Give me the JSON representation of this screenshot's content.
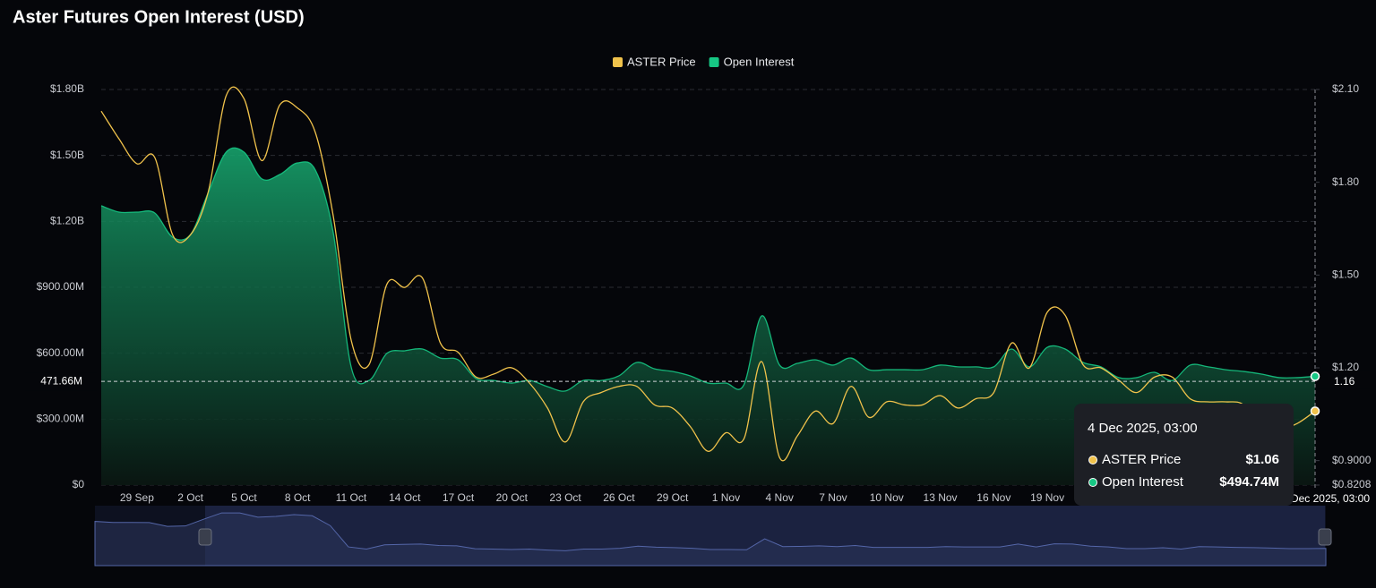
{
  "chart_data": {
    "type": "dual-axis-area-line",
    "title": "Aster Futures Open Interest (USD)",
    "categories": [
      null,
      null,
      "29 Sep",
      null,
      null,
      "2 Oct",
      null,
      null,
      "5 Oct",
      null,
      null,
      "8 Oct",
      null,
      null,
      "11 Oct",
      null,
      null,
      "14 Oct",
      null,
      null,
      "17 Oct",
      null,
      null,
      "20 Oct",
      null,
      null,
      "23 Oct",
      null,
      null,
      "26 Oct",
      null,
      null,
      "29 Oct",
      null,
      null,
      "1 Nov",
      null,
      null,
      "4 Nov",
      null,
      null,
      "7 Nov",
      null,
      null,
      "10 Nov",
      null,
      null,
      "13 Nov",
      null,
      null,
      "16 Nov",
      null,
      null,
      "19 Nov",
      null,
      null,
      null,
      null,
      null,
      null,
      null,
      null,
      null,
      null,
      null,
      null,
      null,
      null,
      null
    ],
    "series": [
      {
        "name": "ASTER Price",
        "color": "#f0c24b",
        "axis": "y2",
        "kind": "line",
        "values": [
          2.03,
          1.94,
          1.86,
          1.88,
          1.63,
          1.63,
          1.77,
          2.08,
          2.07,
          1.87,
          2.05,
          2.04,
          1.96,
          1.69,
          1.29,
          1.21,
          1.47,
          1.46,
          1.49,
          1.28,
          1.25,
          1.17,
          1.18,
          1.2,
          1.15,
          1.07,
          0.96,
          1.09,
          1.12,
          1.14,
          1.14,
          1.08,
          1.07,
          1.01,
          0.93,
          0.99,
          0.97,
          1.22,
          0.91,
          0.98,
          1.06,
          1.02,
          1.14,
          1.04,
          1.09,
          1.08,
          1.08,
          1.11,
          1.07,
          1.1,
          1.12,
          1.28,
          1.2,
          1.38,
          1.37,
          1.21,
          1.2,
          1.16,
          1.12,
          1.17,
          1.17,
          1.1,
          1.09,
          1.09,
          1.08,
          1.0,
          1.0,
          1.02,
          1.06
        ]
      },
      {
        "name": "Open Interest",
        "color": "#16c784",
        "axis": "y",
        "kind": "area",
        "values": [
          1271000000,
          1242000000,
          1242000000,
          1238000000,
          1128000000,
          1140000000,
          1332000000,
          1515000000,
          1515000000,
          1393000000,
          1413000000,
          1466000000,
          1433000000,
          1148000000,
          538000000,
          476000000,
          599000000,
          611000000,
          619000000,
          578000000,
          570000000,
          485000000,
          476000000,
          464000000,
          476000000,
          448000000,
          428000000,
          476000000,
          476000000,
          497000000,
          558000000,
          529000000,
          517000000,
          497000000,
          464000000,
          464000000,
          456000000,
          770000000,
          546000000,
          554000000,
          570000000,
          546000000,
          578000000,
          525000000,
          525000000,
          525000000,
          525000000,
          546000000,
          538000000,
          538000000,
          538000000,
          619000000,
          538000000,
          627000000,
          619000000,
          558000000,
          538000000,
          489000000,
          489000000,
          513000000,
          476000000,
          546000000,
          538000000,
          525000000,
          517000000,
          505000000,
          489000000,
          489000000,
          494740000
        ]
      }
    ],
    "ylim": [
      0,
      1800000000
    ],
    "yticks": [
      {
        "value": 0,
        "label": "$0"
      },
      {
        "value": 300000000,
        "label": "$300.00M"
      },
      {
        "value": 600000000,
        "label": "$600.00M"
      },
      {
        "value": 900000000,
        "label": "$900.00M"
      },
      {
        "value": 1200000000,
        "label": "$1.20B"
      },
      {
        "value": 1500000000,
        "label": "$1.50B"
      },
      {
        "value": 1800000000,
        "label": "$1.80B"
      }
    ],
    "y2lim": [
      0.8208,
      2.1
    ],
    "y2ticks": [
      {
        "value": 0.8208,
        "label": "$0.8208"
      },
      {
        "value": 0.9,
        "label": "$0.9000"
      },
      {
        "value": 1.2,
        "label": "$1.20"
      },
      {
        "value": 1.5,
        "label": "$1.50"
      },
      {
        "value": 1.8,
        "label": "$1.80"
      },
      {
        "value": 2.1,
        "label": "$2.10"
      }
    ],
    "grid": true,
    "legend": "top",
    "crosshair": {
      "y": {
        "value": 471660000,
        "label": "471.66M"
      },
      "y2": {
        "value": 1.16,
        "label": "1.16"
      }
    },
    "tooltip": {
      "date": "4 Dec 2025, 03:00",
      "price": "$1.06",
      "open_interest": "$494.74M"
    }
  }
}
